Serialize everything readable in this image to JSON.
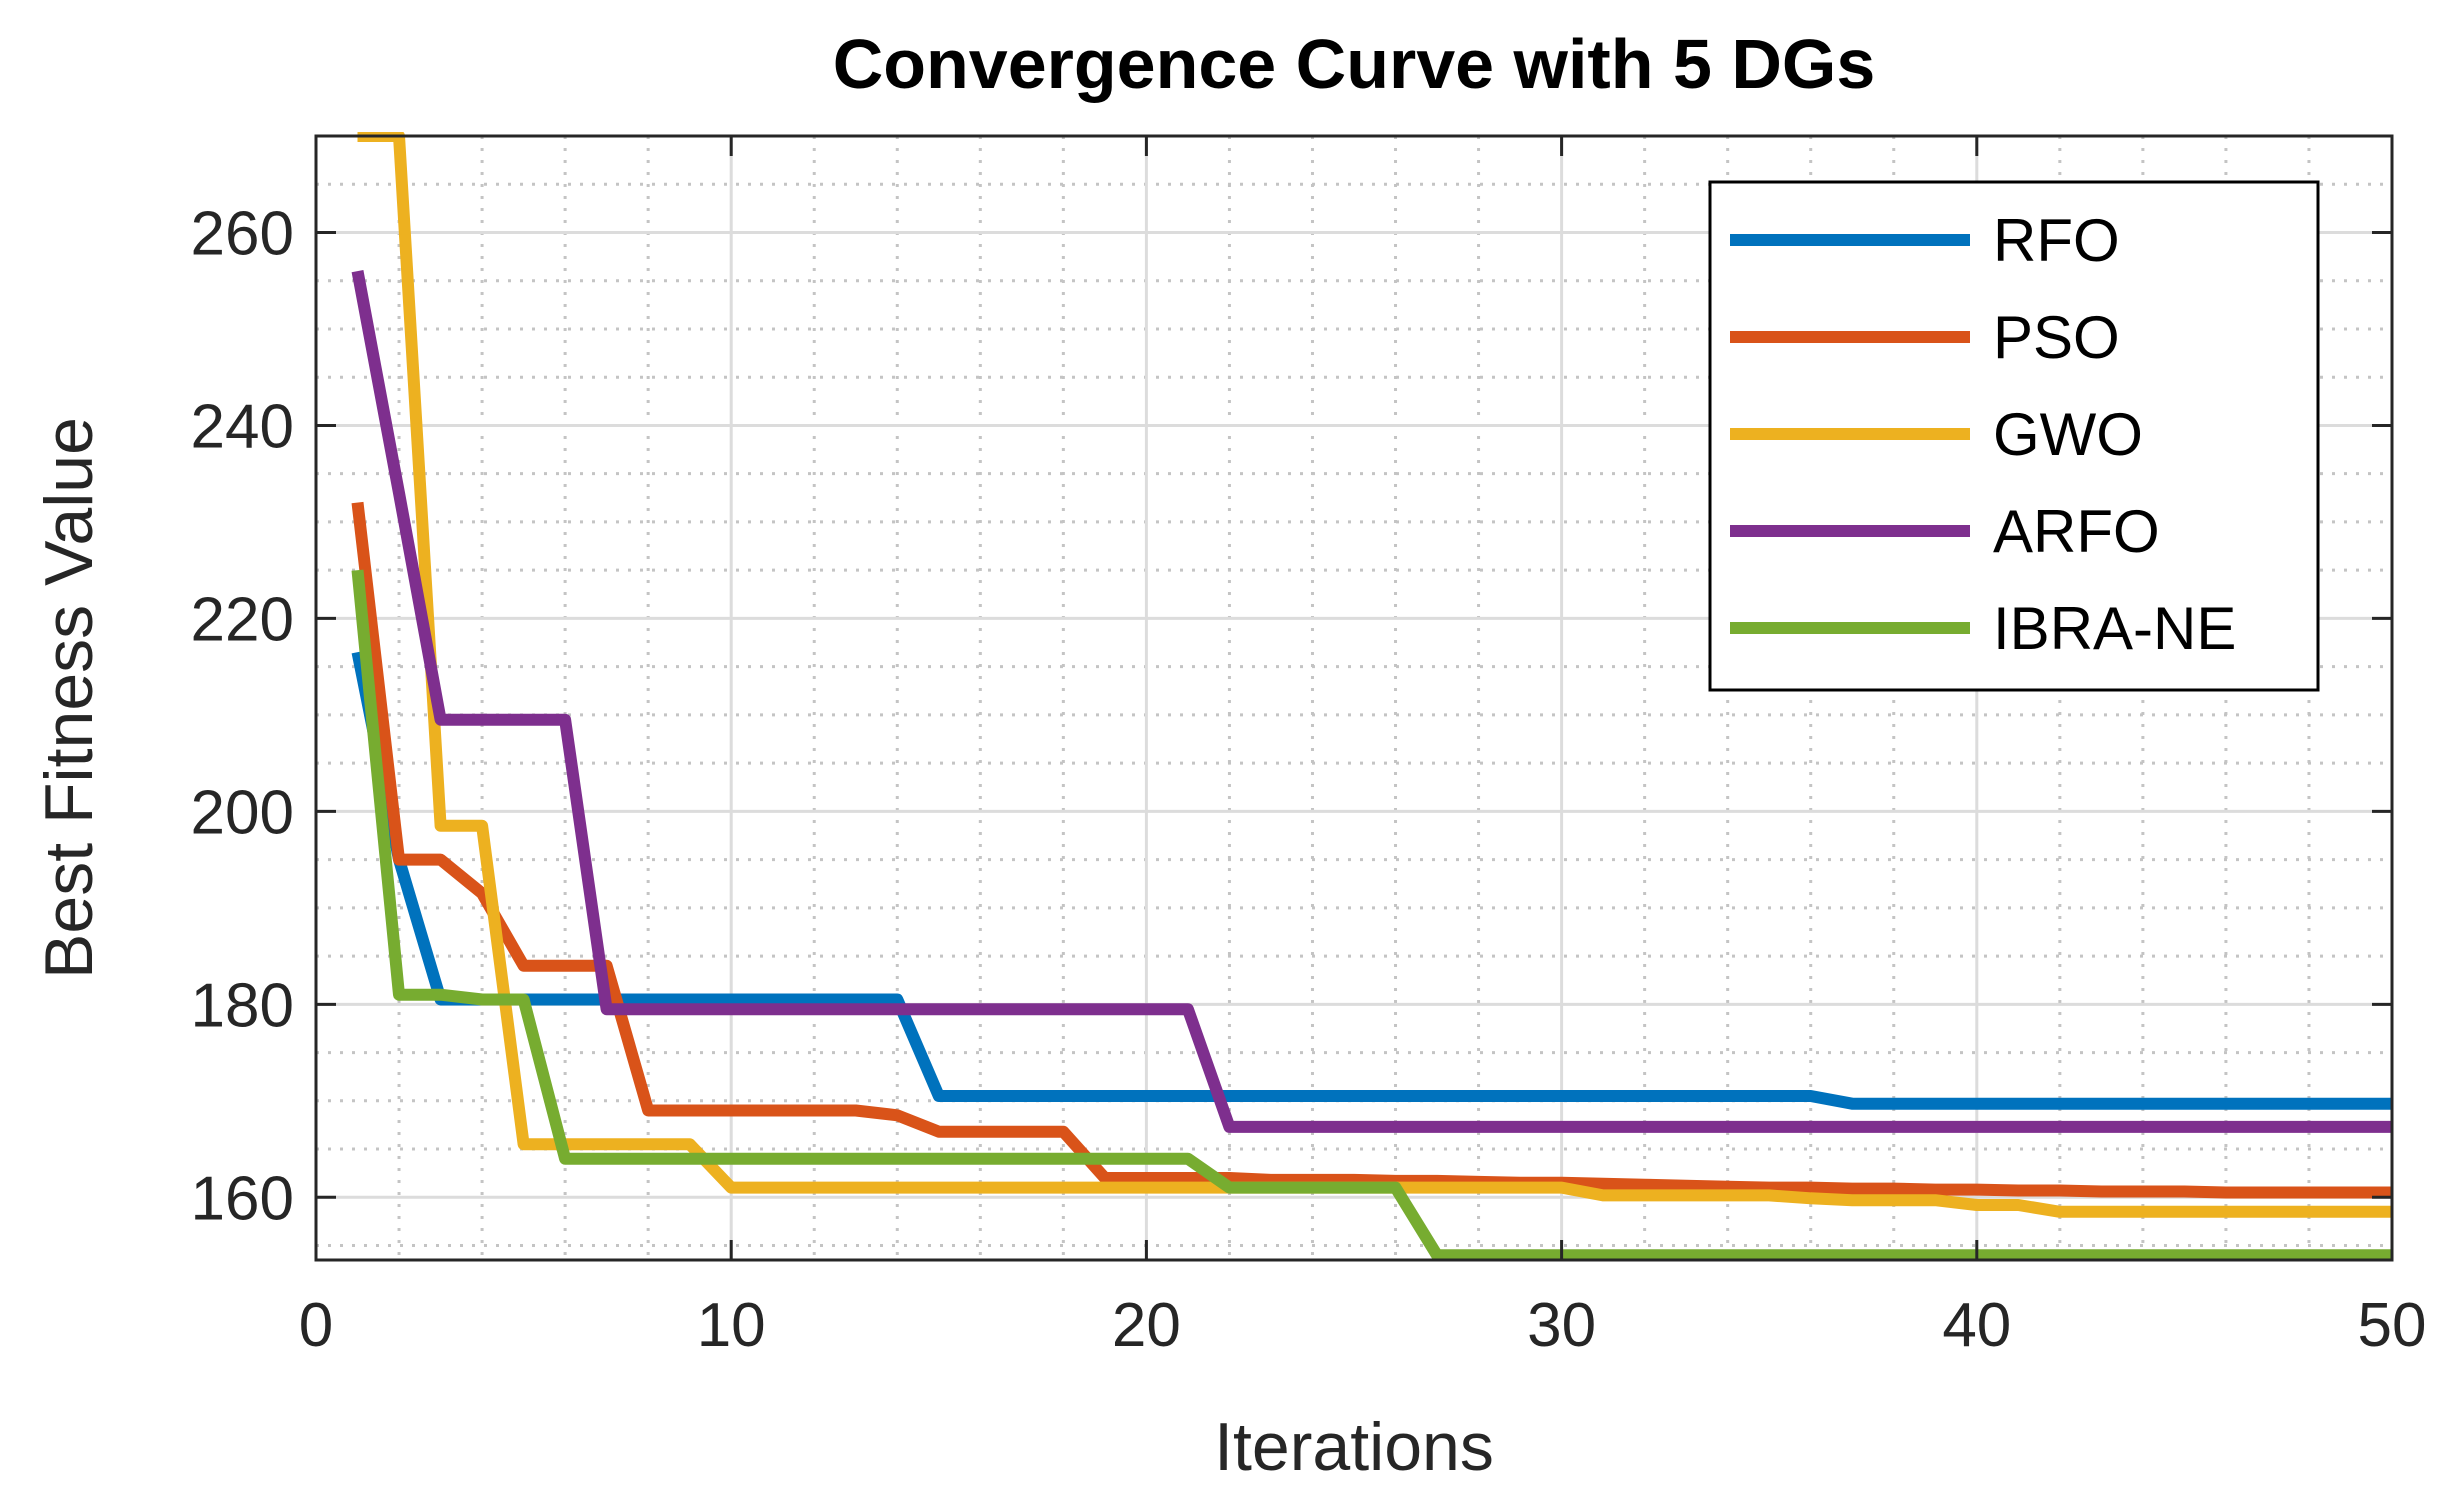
{
  "chart_data": {
    "type": "line",
    "title": "Convergence Curve with 5 DGs",
    "xlabel": "Iterations",
    "ylabel": "Best Fitness Value",
    "xlim": [
      0,
      50
    ],
    "ylim": [
      153.5,
      270
    ],
    "xticks": [
      0,
      10,
      20,
      30,
      40,
      50
    ],
    "yticks": [
      160,
      180,
      200,
      220,
      240,
      260
    ],
    "grid": true,
    "legend_position": "top-right",
    "series": [
      {
        "name": "RFO",
        "color": "#0072BD",
        "x": [
          1,
          2,
          3,
          4,
          5,
          6,
          7,
          8,
          9,
          10,
          11,
          12,
          13,
          14,
          15,
          16,
          17,
          18,
          19,
          20,
          21,
          22,
          23,
          24,
          25,
          26,
          27,
          28,
          29,
          30,
          31,
          32,
          33,
          34,
          35,
          36,
          37,
          38,
          39,
          40,
          41,
          42,
          43,
          44,
          45,
          46,
          47,
          48,
          49,
          50
        ],
        "y": [
          216.5,
          195,
          180.5,
          180.5,
          180.5,
          180.5,
          180.5,
          180.5,
          180.5,
          180.5,
          180.5,
          180.5,
          180.5,
          180.5,
          170.5,
          170.5,
          170.5,
          170.5,
          170.5,
          170.5,
          170.5,
          170.5,
          170.5,
          170.5,
          170.5,
          170.5,
          170.5,
          170.5,
          170.5,
          170.5,
          170.5,
          170.5,
          170.5,
          170.5,
          170.5,
          170.5,
          169.7,
          169.7,
          169.7,
          169.7,
          169.7,
          169.7,
          169.7,
          169.7,
          169.7,
          169.7,
          169.7,
          169.7,
          169.7,
          169.7
        ]
      },
      {
        "name": "PSO",
        "color": "#D95319",
        "x": [
          1,
          2,
          3,
          4,
          5,
          6,
          7,
          8,
          9,
          10,
          11,
          12,
          13,
          14,
          15,
          16,
          17,
          18,
          19,
          20,
          21,
          22,
          23,
          24,
          25,
          26,
          27,
          28,
          29,
          30,
          31,
          32,
          33,
          34,
          35,
          36,
          37,
          38,
          39,
          40,
          41,
          42,
          43,
          44,
          45,
          46,
          47,
          48,
          49,
          50
        ],
        "y": [
          232,
          195,
          195,
          191.5,
          184,
          184,
          184,
          169,
          169,
          169,
          169,
          169,
          169,
          168.5,
          166.8,
          166.8,
          166.8,
          166.8,
          162,
          162,
          162,
          162,
          161.8,
          161.8,
          161.8,
          161.7,
          161.7,
          161.6,
          161.5,
          161.5,
          161.4,
          161.3,
          161.2,
          161.1,
          161,
          161,
          160.9,
          160.9,
          160.8,
          160.8,
          160.7,
          160.7,
          160.6,
          160.6,
          160.6,
          160.5,
          160.5,
          160.5,
          160.5,
          160.5
        ]
      },
      {
        "name": "GWO",
        "color": "#EDB120",
        "x": [
          1,
          2,
          3,
          4,
          5,
          6,
          7,
          8,
          9,
          10,
          11,
          12,
          13,
          14,
          15,
          16,
          17,
          18,
          19,
          20,
          21,
          22,
          23,
          24,
          25,
          26,
          27,
          28,
          29,
          30,
          31,
          32,
          33,
          34,
          35,
          36,
          37,
          38,
          39,
          40,
          41,
          42,
          43,
          44,
          45,
          46,
          47,
          48,
          49,
          50
        ],
        "y": [
          270,
          270,
          198.5,
          198.5,
          165.5,
          165.5,
          165.5,
          165.5,
          165.5,
          161,
          161,
          161,
          161,
          161,
          161,
          161,
          161,
          161,
          161,
          161,
          161,
          161,
          161,
          161,
          161,
          161,
          161,
          161,
          161,
          161,
          160.2,
          160.2,
          160.2,
          160.2,
          160.2,
          159.9,
          159.7,
          159.7,
          159.7,
          159.2,
          159.2,
          158.5,
          158.5,
          158.5,
          158.5,
          158.5,
          158.5,
          158.5,
          158.5,
          158.5
        ]
      },
      {
        "name": "ARFO",
        "color": "#7E2F8E",
        "x": [
          1,
          2,
          3,
          4,
          5,
          6,
          7,
          8,
          9,
          10,
          11,
          12,
          13,
          14,
          15,
          16,
          17,
          18,
          19,
          20,
          21,
          22,
          23,
          24,
          25,
          26,
          27,
          28,
          29,
          30,
          31,
          32,
          33,
          34,
          35,
          36,
          37,
          38,
          39,
          40,
          41,
          42,
          43,
          44,
          45,
          46,
          47,
          48,
          49,
          50
        ],
        "y": [
          256,
          233,
          209.5,
          209.5,
          209.5,
          209.5,
          179.5,
          179.5,
          179.5,
          179.5,
          179.5,
          179.5,
          179.5,
          179.5,
          179.5,
          179.5,
          179.5,
          179.5,
          179.5,
          179.5,
          179.5,
          167.3,
          167.3,
          167.3,
          167.3,
          167.3,
          167.3,
          167.3,
          167.3,
          167.3,
          167.3,
          167.3,
          167.3,
          167.3,
          167.3,
          167.3,
          167.3,
          167.3,
          167.3,
          167.3,
          167.3,
          167.3,
          167.3,
          167.3,
          167.3,
          167.3,
          167.3,
          167.3,
          167.3,
          167.3
        ]
      },
      {
        "name": "IBRA-NE",
        "color": "#77AC30",
        "x": [
          1,
          2,
          3,
          4,
          5,
          6,
          7,
          8,
          9,
          10,
          11,
          12,
          13,
          14,
          15,
          16,
          17,
          18,
          19,
          20,
          21,
          22,
          23,
          24,
          25,
          26,
          27,
          28,
          29,
          30,
          31,
          32,
          33,
          34,
          35,
          36,
          37,
          38,
          39,
          40,
          41,
          42,
          43,
          44,
          45,
          46,
          47,
          48,
          49,
          50
        ],
        "y": [
          225,
          181,
          181,
          180.5,
          180.5,
          164,
          164,
          164,
          164,
          164,
          164,
          164,
          164,
          164,
          164,
          164,
          164,
          164,
          164,
          164,
          164,
          161,
          161,
          161,
          161,
          161,
          154,
          154,
          154,
          154,
          154,
          154,
          154,
          154,
          154,
          154,
          154,
          154,
          154,
          154,
          154,
          154,
          154,
          154,
          154,
          154,
          154,
          154,
          154,
          154
        ]
      }
    ]
  }
}
